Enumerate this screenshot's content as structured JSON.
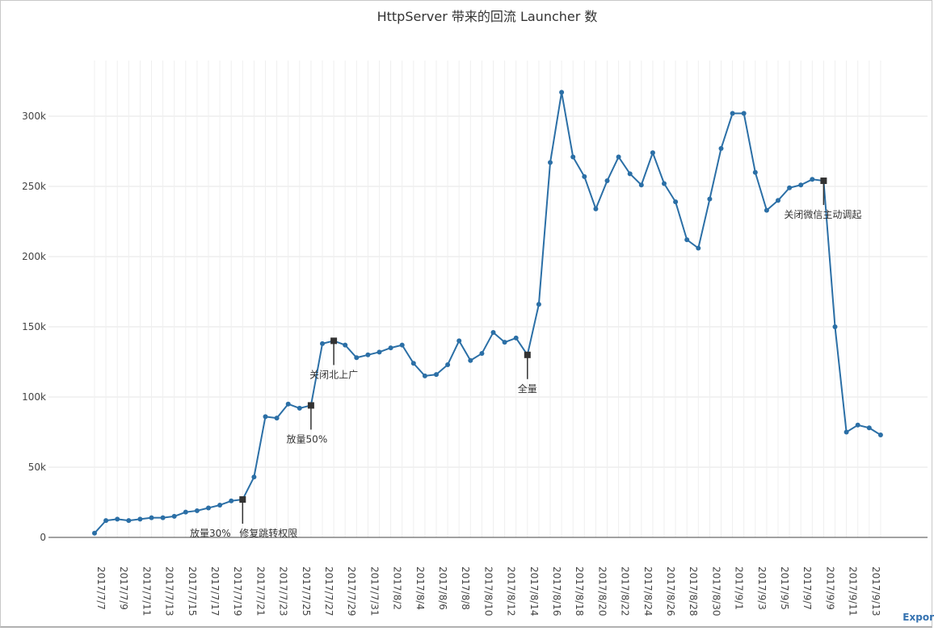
{
  "chart_data": {
    "type": "line",
    "title": "HttpServer 带来的回流 Launcher 数",
    "xlabel": "",
    "ylabel": "",
    "ylim": [
      0,
      330000
    ],
    "yticks": [
      0,
      50000,
      100000,
      150000,
      200000,
      250000,
      300000
    ],
    "ytick_labels": [
      "0",
      "50k",
      "100k",
      "150k",
      "200k",
      "250k",
      "300k"
    ],
    "xtick_labels": [
      "2017/7/7",
      "2017/7/9",
      "2017/7/11",
      "2017/7/13",
      "2017/7/15",
      "2017/7/17",
      "2017/7/19",
      "2017/7/21",
      "2017/7/23",
      "2017/7/25",
      "2017/7/27",
      "2017/7/29",
      "2017/7/31",
      "2017/8/2",
      "2017/8/4",
      "2017/8/6",
      "2017/8/8",
      "2017/8/10",
      "2017/8/12",
      "2017/8/14",
      "2017/8/16",
      "2017/8/18",
      "2017/8/20",
      "2017/8/22",
      "2017/8/24",
      "2017/8/26",
      "2017/8/28",
      "2017/8/30",
      "2017/9/1",
      "2017/9/3",
      "2017/9/5",
      "2017/9/7",
      "2017/9/9",
      "2017/9/11",
      "2017/9/13"
    ],
    "grid": true,
    "color": "#2b6fa6",
    "marker_color": "#333333",
    "series": [
      {
        "x_start": "2017/7/7",
        "step_days": 1,
        "values": [
          3000,
          12000,
          13000,
          12000,
          13000,
          14000,
          14000,
          15000,
          18000,
          19000,
          21000,
          23000,
          26000,
          27000,
          43000,
          86000,
          85000,
          95000,
          92000,
          94000,
          138000,
          140000,
          137000,
          128000,
          130000,
          132000,
          135000,
          137000,
          124000,
          115000,
          116000,
          123000,
          140000,
          126000,
          131000,
          146000,
          139000,
          142000,
          130000,
          166000,
          267000,
          317000,
          271000,
          257000,
          234000,
          254000,
          271000,
          259000,
          251000,
          274000,
          252000,
          239000,
          212000,
          206000,
          241000,
          277000,
          302000,
          302000,
          260000,
          233000,
          240000,
          249000,
          251000,
          255000,
          254000,
          150000,
          75000,
          80000,
          78000,
          73000
        ]
      }
    ],
    "annotations": [
      {
        "x": "2017/7/20",
        "value": 27000,
        "labels": [
          "放量30%",
          "修复跳转权限"
        ]
      },
      {
        "x": "2017/7/26",
        "value": 94000,
        "labels": [
          "放量50%"
        ]
      },
      {
        "x": "2017/7/28",
        "value": 140000,
        "labels": [
          "关闭北上广"
        ]
      },
      {
        "x": "2017/8/14",
        "value": 130000,
        "labels": [
          "全量"
        ]
      },
      {
        "x": "2017/9/9",
        "value": 254000,
        "labels": [
          "关闭微信主动调起"
        ]
      }
    ]
  },
  "export_label": "Expor"
}
